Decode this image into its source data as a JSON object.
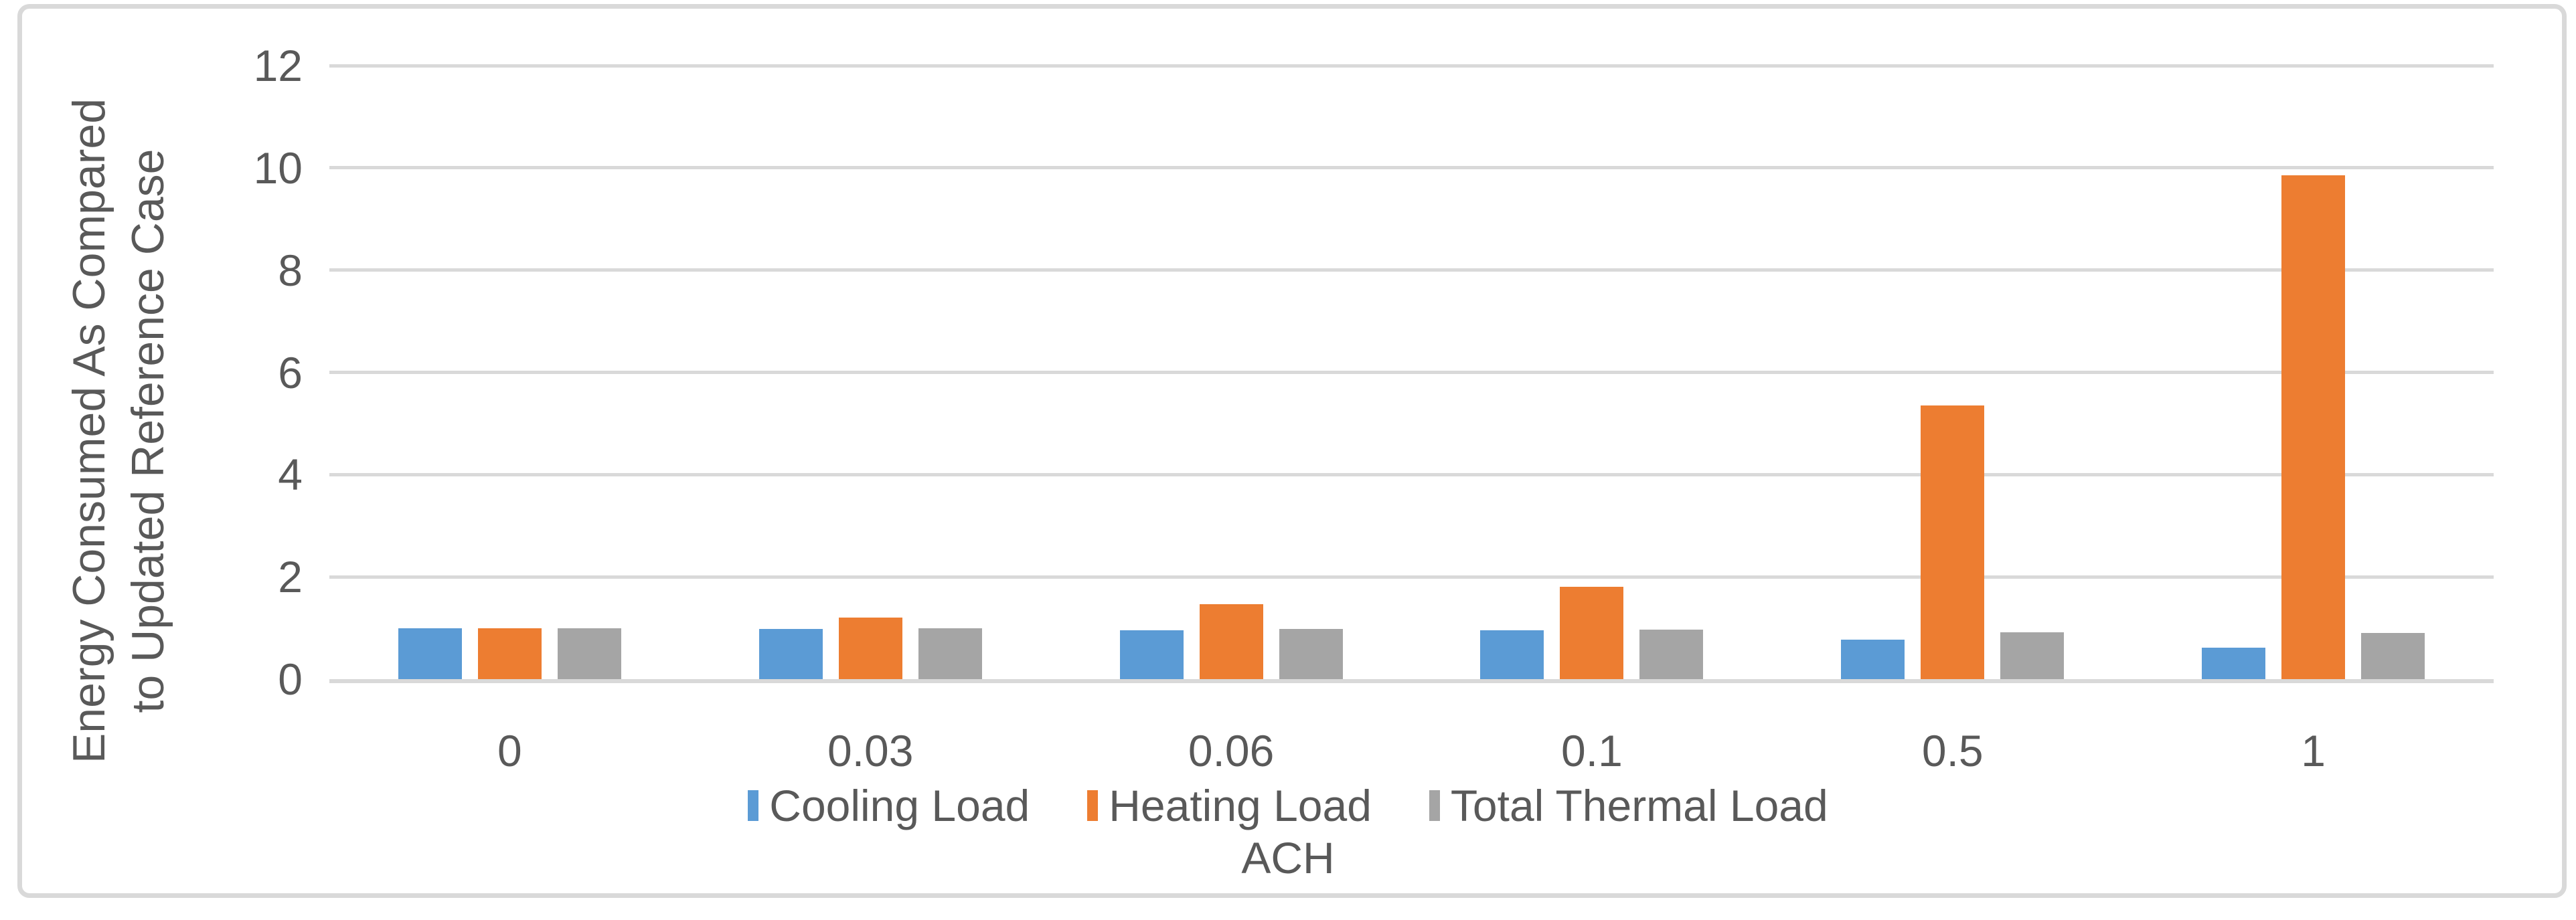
{
  "chart_data": {
    "type": "bar",
    "title": "",
    "categories": [
      "0",
      "0.03",
      "0.06",
      "0.1",
      "0.5",
      "1"
    ],
    "series": [
      {
        "name": "Cooling Load",
        "color": "#5B9BD5",
        "values": [
          1.0,
          0.98,
          0.96,
          0.95,
          0.77,
          0.61
        ]
      },
      {
        "name": "Heating Load",
        "color": "#ED7D31",
        "values": [
          1.0,
          1.21,
          1.46,
          1.8,
          5.35,
          9.85
        ]
      },
      {
        "name": "Total Thermal Load",
        "color": "#A5A5A5",
        "values": [
          1.0,
          0.99,
          0.98,
          0.97,
          0.92,
          0.9
        ]
      }
    ],
    "xlabel": "ACH",
    "ylabel_line1": "Energy Consumed As Compared",
    "ylabel_line2": "to Updated Reference Case",
    "ylim": [
      0,
      12
    ],
    "yticks": [
      0,
      2,
      4,
      6,
      8,
      10,
      12
    ],
    "grid": "horizontal gridlines on",
    "legend_position": "bottom",
    "colors": {
      "gridline": "#D9D9D9",
      "axis_line": "#D9D9D9",
      "text": "#595959",
      "chart_border": "#D9D9D9",
      "background": "#FFFFFF"
    }
  }
}
